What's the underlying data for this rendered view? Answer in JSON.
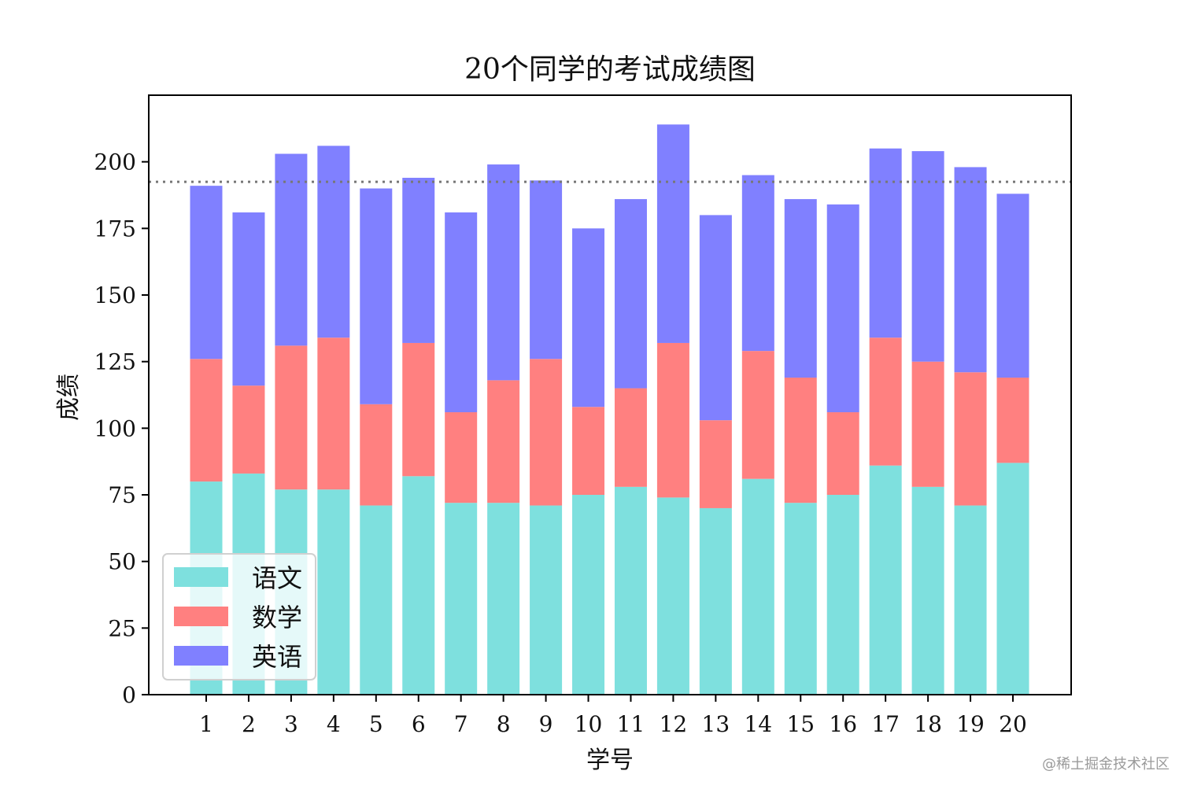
{
  "chart_data": {
    "type": "bar",
    "stacked": true,
    "title": "20个同学的考试成绩图",
    "xlabel": "学号",
    "ylabel": "成绩",
    "categories": [
      "1",
      "2",
      "3",
      "4",
      "5",
      "6",
      "7",
      "8",
      "9",
      "10",
      "11",
      "12",
      "13",
      "14",
      "15",
      "16",
      "17",
      "18",
      "19",
      "20"
    ],
    "series": [
      {
        "name": "语文",
        "color": "#7ee0de",
        "values": [
          80,
          83,
          77,
          77,
          71,
          82,
          72,
          72,
          71,
          75,
          78,
          74,
          70,
          81,
          72,
          75,
          86,
          78,
          71,
          87
        ]
      },
      {
        "name": "数学",
        "color": "#ff8080",
        "values": [
          46,
          33,
          54,
          57,
          38,
          50,
          34,
          46,
          55,
          33,
          37,
          58,
          33,
          48,
          47,
          31,
          48,
          47,
          50,
          32
        ]
      },
      {
        "name": "英语",
        "color": "#8080ff",
        "values": [
          65,
          65,
          72,
          72,
          81,
          62,
          75,
          81,
          67,
          67,
          71,
          82,
          77,
          66,
          67,
          78,
          71,
          79,
          77,
          69
        ]
      }
    ],
    "ylim": [
      0,
      225
    ],
    "yticks": [
      0,
      25,
      50,
      75,
      100,
      125,
      150,
      175,
      200
    ],
    "reference_line": {
      "value": 192.5,
      "style": "dotted",
      "color": "#777777"
    },
    "grid": false,
    "legend": {
      "placement": "lower-left"
    }
  },
  "watermark": "@稀土掘金技术社区"
}
